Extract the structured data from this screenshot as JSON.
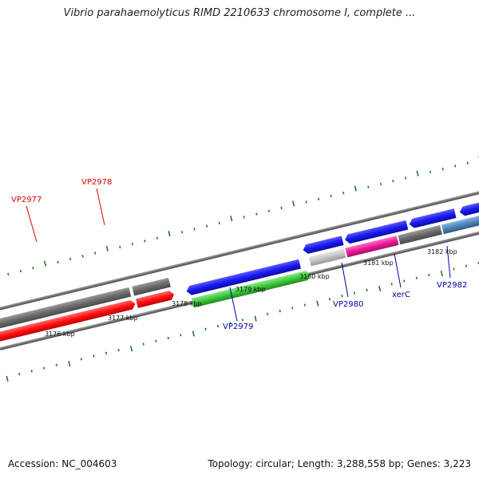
{
  "title": "Vibrio parahaemolyticus RIMD 2210633 chromosome I, complete ...",
  "footer": {
    "accession": "Accession: NC_004603",
    "summary": "Topology: circular; Length: 3,288,558 bp; Genes: 3,223"
  },
  "colors": {
    "red_gene": "#ff1a1a",
    "blue_gene": "#1a1aee",
    "green_gene": "#3cc83c",
    "pink_gene": "#ee1a9a",
    "gray_gene": "#707070",
    "steel_gene": "#4f86b8",
    "tick_green": "#227722",
    "label_red": "#dd0000",
    "label_blue": "#0000aa"
  },
  "coordinate_labels": [
    "3176 kbp",
    "3177 kbp",
    "3178 kbp",
    "3179 kbp",
    "3180 kbp",
    "3181 kbp",
    "3182 kbp"
  ],
  "gene_labels": [
    {
      "name": "VP2977",
      "color": "red"
    },
    {
      "name": "VP2978",
      "color": "red"
    },
    {
      "name": "VP2979",
      "color": "blue"
    },
    {
      "name": "VP2980",
      "color": "blue"
    },
    {
      "name": "xerC",
      "color": "blue"
    },
    {
      "name": "VP2982",
      "color": "blue"
    }
  ]
}
